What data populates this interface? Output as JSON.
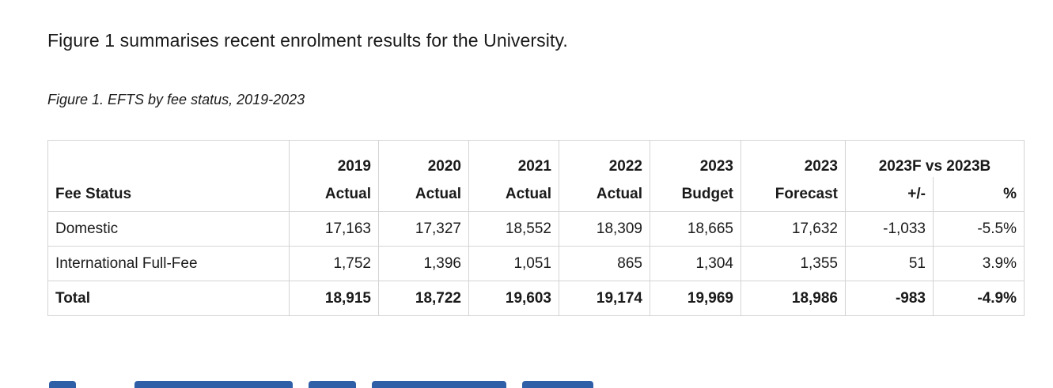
{
  "intro": "Figure 1 summarises recent enrolment results for the University.",
  "caption": "Figure 1. EFTS by fee status, 2019-2023",
  "table": {
    "header_row1": [
      "2019",
      "2020",
      "2021",
      "2022",
      "2023",
      "2023"
    ],
    "group_header": "2023F vs 2023B",
    "label_header": "Fee Status",
    "header_row2": [
      "Actual",
      "Actual",
      "Actual",
      "Actual",
      "Budget",
      "Forecast",
      "+/-",
      "%"
    ],
    "rows": [
      {
        "label": "Domestic",
        "values": [
          "17,163",
          "17,327",
          "18,552",
          "18,309",
          "18,665",
          "17,632",
          "-1,033",
          "-5.5%"
        ]
      },
      {
        "label": "International Full-Fee",
        "values": [
          "1,752",
          "1,396",
          "1,051",
          "865",
          "1,304",
          "1,355",
          "51",
          "3.9%"
        ]
      },
      {
        "label": "Total",
        "values": [
          "18,915",
          "18,722",
          "19,603",
          "19,174",
          "19,969",
          "18,986",
          "-983",
          "-4.9%"
        ]
      }
    ]
  },
  "colors": {
    "heading_blue": "#2e5fa7",
    "border": "#d4d4d4"
  }
}
